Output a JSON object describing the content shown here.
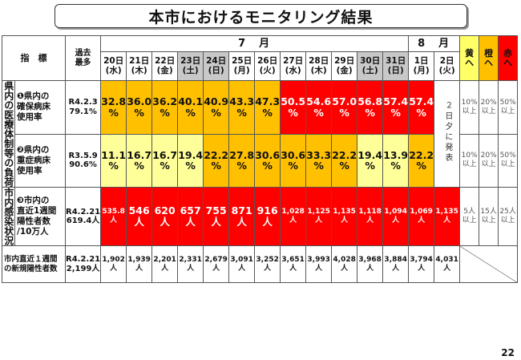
{
  "title": "本市におけるモニタリング結果",
  "header": {
    "indicator_label": "指　標",
    "past_max_label": "過去\n最多",
    "months": [
      "7　月",
      "8　月"
    ],
    "levels": [
      {
        "label": "黄\nへ",
        "color": "#ffff66"
      },
      {
        "label": "橙\nへ",
        "color": "#ffc000"
      },
      {
        "label": "赤\nへ",
        "color": "#ff0000"
      }
    ]
  },
  "dates": [
    {
      "day": "20日",
      "wd": "(水)",
      "kind": "wd"
    },
    {
      "day": "21日",
      "wd": "(木)",
      "kind": "wd"
    },
    {
      "day": "22日",
      "wd": "(金)",
      "kind": "wd"
    },
    {
      "day": "23日",
      "wd": "(土)",
      "kind": "sat"
    },
    {
      "day": "24日",
      "wd": "(日)",
      "kind": "sun"
    },
    {
      "day": "25日",
      "wd": "(月)",
      "kind": "wd"
    },
    {
      "day": "26日",
      "wd": "(火)",
      "kind": "wd"
    },
    {
      "day": "27日",
      "wd": "(水)",
      "kind": "wd"
    },
    {
      "day": "28日",
      "wd": "(木)",
      "kind": "wd"
    },
    {
      "day": "29日",
      "wd": "(金)",
      "kind": "wd"
    },
    {
      "day": "30日",
      "wd": "(土)",
      "kind": "sat"
    },
    {
      "day": "31日",
      "wd": "(日)",
      "kind": "sun"
    },
    {
      "day": "1日",
      "wd": "(月)",
      "kind": "wd"
    },
    {
      "day": "2日",
      "wd": "(火)",
      "kind": "wd"
    }
  ],
  "categories": {
    "medical": "県内の医療体制等の負荷",
    "infection": "市内感染状況"
  },
  "rows": [
    {
      "indicator": "❶県内の\n確保病床\n使用率",
      "past_max": "R4.2.3\n79.1%",
      "values": [
        "32.8\n%",
        "36.0\n%",
        "36.2\n%",
        "40.1\n%",
        "40.9\n%",
        "43.3\n%",
        "47.3\n%",
        "50.5\n%",
        "54.6\n%",
        "57.0\n%",
        "56.8\n%",
        "57.4\n%",
        "57.4\n%"
      ],
      "colors": [
        "or",
        "or",
        "or",
        "or",
        "or",
        "or",
        "or",
        "red",
        "red",
        "red",
        "red",
        "red",
        "red"
      ],
      "thresholds": [
        "10%\n以上",
        "20%\n以上",
        "50%\n以上"
      ]
    },
    {
      "indicator": "❷県内の\n重症病床\n使用率",
      "past_max": "R3.5.9\n90.6%",
      "values": [
        "11.1\n%",
        "16.7\n%",
        "16.7\n%",
        "19.4\n%",
        "22.2\n%",
        "27.8\n%",
        "30.6\n%",
        "30.6\n%",
        "33.3\n%",
        "22.2\n%",
        "19.4\n%",
        "13.9\n%",
        "22.2\n%"
      ],
      "colors": [
        "yl",
        "yl",
        "yl",
        "yl",
        "or",
        "or",
        "or",
        "or",
        "or",
        "or",
        "yl",
        "yl",
        "or"
      ],
      "thresholds": [
        "10%\n以上",
        "20%\n以上",
        "50%\n以上"
      ]
    },
    {
      "indicator": "❸市内の\n直近1週間\n陽性者数\n/10万人",
      "past_max": "R4.2.21\n619.4人",
      "values": [
        "535.8\n人",
        "546\n人",
        "620\n人",
        "657\n人",
        "755\n人",
        "871\n人",
        "916\n人",
        "1,028\n人",
        "1,125\n人",
        "1,135\n人",
        "1,118\n人",
        "1,094\n人",
        "1,069\n人",
        "1,135\n人"
      ],
      "colors": [
        "red",
        "red",
        "red",
        "red",
        "red",
        "red",
        "red",
        "red",
        "red",
        "red",
        "red",
        "red",
        "red",
        "red"
      ],
      "thresholds": [
        "5人\n以上",
        "15人\n以上",
        "25人\n以上"
      ]
    },
    {
      "indicator": "市内直近１週間\nの新規陽性者数",
      "past_max": "R4.2.21\n2,199人",
      "values": [
        "1,902\n人",
        "1,939\n人",
        "2,201\n人",
        "2,331\n人",
        "2,679\n人",
        "3,091\n人",
        "3,252\n人",
        "3,651\n人",
        "3,993\n人",
        "4,028\n人",
        "3,968\n人",
        "3,884\n人",
        "3,794\n人",
        "4,031\n人"
      ],
      "colors": [
        "wh",
        "wh",
        "wh",
        "wh",
        "wh",
        "wh",
        "wh",
        "wh",
        "wh",
        "wh",
        "wh",
        "wh",
        "wh",
        "wh"
      ]
    }
  ],
  "note_day2": "２日夕に発表",
  "page_number": "22"
}
